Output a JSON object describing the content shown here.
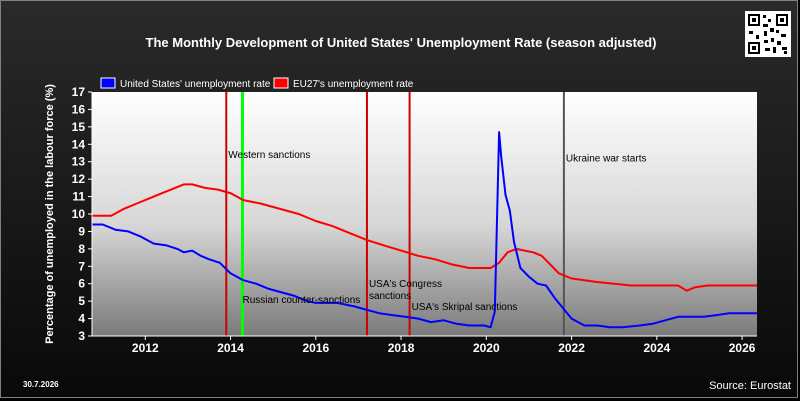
{
  "chart_data": {
    "type": "line",
    "title": "The Monthly Development of United States' Unemployment Rate (season adjusted)",
    "ylabel": "Percentage of unemployed in the labour force (%)",
    "xlabel": "",
    "ylim": [
      3,
      17
    ],
    "xlim": [
      2010.75,
      2026.35
    ],
    "yticks": [
      3,
      4,
      5,
      6,
      7,
      8,
      9,
      10,
      11,
      12,
      13,
      14,
      15,
      16,
      17
    ],
    "xticks": [
      2012,
      2014,
      2016,
      2018,
      2020,
      2022,
      2024,
      2026
    ],
    "grid": false,
    "legend_position": "top-left",
    "series": [
      {
        "name": "United States' unemployment rate",
        "color": "#0000ff",
        "points": [
          [
            2010.75,
            9.4
          ],
          [
            2011.0,
            9.4
          ],
          [
            2011.3,
            9.1
          ],
          [
            2011.6,
            9.0
          ],
          [
            2011.9,
            8.7
          ],
          [
            2012.2,
            8.3
          ],
          [
            2012.5,
            8.2
          ],
          [
            2012.75,
            8.0
          ],
          [
            2012.9,
            7.8
          ],
          [
            2013.1,
            7.9
          ],
          [
            2013.3,
            7.6
          ],
          [
            2013.5,
            7.4
          ],
          [
            2013.75,
            7.2
          ],
          [
            2014.0,
            6.6
          ],
          [
            2014.3,
            6.2
          ],
          [
            2014.6,
            6.0
          ],
          [
            2014.9,
            5.7
          ],
          [
            2015.2,
            5.5
          ],
          [
            2015.5,
            5.3
          ],
          [
            2015.8,
            5.0
          ],
          [
            2016.0,
            4.9
          ],
          [
            2016.5,
            4.9
          ],
          [
            2016.9,
            4.7
          ],
          [
            2017.2,
            4.5
          ],
          [
            2017.5,
            4.3
          ],
          [
            2017.8,
            4.2
          ],
          [
            2018.1,
            4.1
          ],
          [
            2018.4,
            4.0
          ],
          [
            2018.7,
            3.8
          ],
          [
            2019.0,
            3.9
          ],
          [
            2019.3,
            3.7
          ],
          [
            2019.6,
            3.6
          ],
          [
            2019.95,
            3.6
          ],
          [
            2020.1,
            3.5
          ],
          [
            2020.2,
            4.4
          ],
          [
            2020.3,
            14.7
          ],
          [
            2020.35,
            13.3
          ],
          [
            2020.45,
            11.1
          ],
          [
            2020.55,
            10.2
          ],
          [
            2020.65,
            8.4
          ],
          [
            2020.8,
            6.9
          ],
          [
            2021.0,
            6.4
          ],
          [
            2021.2,
            6.0
          ],
          [
            2021.4,
            5.9
          ],
          [
            2021.6,
            5.2
          ],
          [
            2021.8,
            4.6
          ],
          [
            2022.0,
            4.0
          ],
          [
            2022.3,
            3.6
          ],
          [
            2022.6,
            3.6
          ],
          [
            2022.9,
            3.5
          ],
          [
            2023.2,
            3.5
          ],
          [
            2023.6,
            3.6
          ],
          [
            2023.9,
            3.7
          ],
          [
            2024.2,
            3.9
          ],
          [
            2024.5,
            4.1
          ],
          [
            2024.8,
            4.1
          ],
          [
            2025.1,
            4.1
          ],
          [
            2025.4,
            4.2
          ],
          [
            2025.7,
            4.3
          ],
          [
            2026.0,
            4.3
          ],
          [
            2026.35,
            4.3
          ]
        ]
      },
      {
        "name": "EU27's unemployment rate",
        "color": "#ff0000",
        "points": [
          [
            2010.75,
            9.9
          ],
          [
            2011.2,
            9.9
          ],
          [
            2011.5,
            10.3
          ],
          [
            2011.8,
            10.6
          ],
          [
            2012.1,
            10.9
          ],
          [
            2012.4,
            11.2
          ],
          [
            2012.7,
            11.5
          ],
          [
            2012.9,
            11.7
          ],
          [
            2013.1,
            11.7
          ],
          [
            2013.4,
            11.5
          ],
          [
            2013.7,
            11.4
          ],
          [
            2014.0,
            11.2
          ],
          [
            2014.3,
            10.8
          ],
          [
            2014.7,
            10.6
          ],
          [
            2015.0,
            10.4
          ],
          [
            2015.3,
            10.2
          ],
          [
            2015.6,
            10.0
          ],
          [
            2016.0,
            9.6
          ],
          [
            2016.4,
            9.3
          ],
          [
            2016.8,
            8.9
          ],
          [
            2017.2,
            8.5
          ],
          [
            2017.6,
            8.2
          ],
          [
            2018.0,
            7.9
          ],
          [
            2018.4,
            7.6
          ],
          [
            2018.8,
            7.4
          ],
          [
            2019.2,
            7.1
          ],
          [
            2019.6,
            6.9
          ],
          [
            2019.9,
            6.9
          ],
          [
            2020.1,
            6.9
          ],
          [
            2020.3,
            7.2
          ],
          [
            2020.5,
            7.8
          ],
          [
            2020.7,
            8.0
          ],
          [
            2020.9,
            7.9
          ],
          [
            2021.1,
            7.8
          ],
          [
            2021.3,
            7.6
          ],
          [
            2021.5,
            7.1
          ],
          [
            2021.7,
            6.6
          ],
          [
            2022.0,
            6.3
          ],
          [
            2022.3,
            6.2
          ],
          [
            2022.6,
            6.1
          ],
          [
            2023.0,
            6.0
          ],
          [
            2023.4,
            5.9
          ],
          [
            2023.8,
            5.9
          ],
          [
            2024.2,
            5.9
          ],
          [
            2024.5,
            5.9
          ],
          [
            2024.7,
            5.6
          ],
          [
            2024.9,
            5.8
          ],
          [
            2025.2,
            5.9
          ],
          [
            2025.6,
            5.9
          ],
          [
            2026.0,
            5.9
          ],
          [
            2026.35,
            5.9
          ]
        ]
      }
    ],
    "events": [
      {
        "x": 2013.9,
        "color": "#cc0000",
        "label": "Western sanctions",
        "label_y": 13.2
      },
      {
        "x": 2014.28,
        "color": "#00ff00",
        "label": "Russian counter-sanctions",
        "label_y": 4.9
      },
      {
        "x": 2017.2,
        "color": "#cc0000",
        "label": "USA's Congress sanctions",
        "label_y": 5.8
      },
      {
        "x": 2018.2,
        "color": "#cc0000",
        "label": "USA's Skripal sanctions",
        "label_y": 4.5
      },
      {
        "x": 2021.82,
        "color": "#555555",
        "label": "Ukraine war starts",
        "label_y": 13.0
      }
    ]
  },
  "footer": {
    "date": "30.7.2026",
    "source": "Source: Eurostat"
  },
  "qr_icon": "qr-code-icon",
  "colors": {
    "plot_top": "#ffffff",
    "plot_bottom": "#7a7a7a",
    "background": "#0f0f0f"
  }
}
